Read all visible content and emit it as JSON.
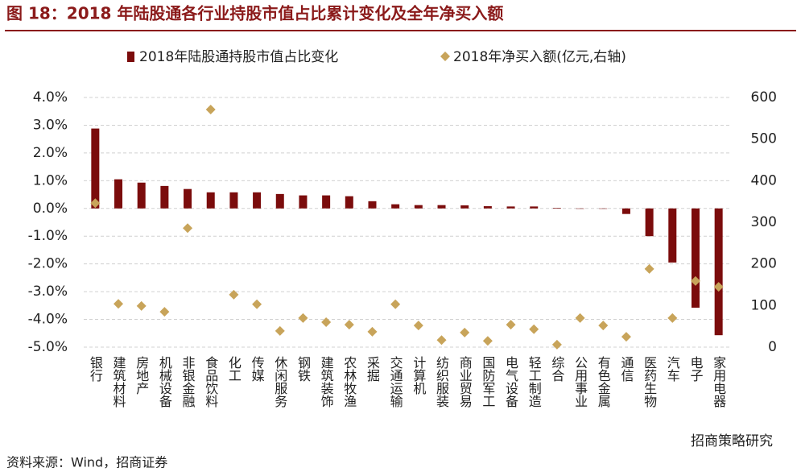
{
  "chart_data": {
    "type": "bar_scatter",
    "title": "图 18：2018 年陆股通各行业持股市值占比累计变化及全年净买入额",
    "source": "资料来源：Wind，招商证券",
    "watermark": "招商策略研究",
    "categories": [
      "银行",
      "建筑材料",
      "房地产",
      "机械设备",
      "非银金融",
      "食品饮料",
      "化工",
      "传媒",
      "休闲服务",
      "钢铁",
      "建筑装饰",
      "农林牧渔",
      "采掘",
      "交通运输",
      "计算机",
      "纺织服装",
      "商业贸易",
      "国防军工",
      "电气设备",
      "轻工制造",
      "综合",
      "公用事业",
      "有色金属",
      "通信",
      "医药生物",
      "汽车",
      "电子",
      "家用电器"
    ],
    "series": [
      {
        "name": "2018年陆股通持股市值占比变化",
        "color": "#7b0c0c",
        "type": "bar",
        "values": [
          2.88,
          1.05,
          0.93,
          0.81,
          0.7,
          0.58,
          0.58,
          0.58,
          0.52,
          0.47,
          0.47,
          0.44,
          0.26,
          0.15,
          0.12,
          0.12,
          0.11,
          0.08,
          0.07,
          0.07,
          0.02,
          0.0,
          0.0,
          -0.2,
          -1.0,
          -1.95,
          -3.58,
          -4.57
        ]
      },
      {
        "name": "2018年净买入额(亿元,右轴)",
        "color": "#c8a45a",
        "type": "scatter",
        "axis": "y2",
        "values": [
          346,
          104,
          99,
          85,
          286,
          571,
          126,
          103,
          39,
          70,
          60,
          54,
          37,
          103,
          52,
          17,
          35,
          15,
          54,
          43,
          6,
          70,
          52,
          25,
          188,
          70,
          159,
          145
        ]
      }
    ],
    "ylim": [
      -5,
      4
    ],
    "yticks": [
      {
        "value": 4,
        "label": "4.0%"
      },
      {
        "value": 3,
        "label": "3.0%"
      },
      {
        "value": 2,
        "label": "2.0%"
      },
      {
        "value": 1,
        "label": "1.0%"
      },
      {
        "value": 0,
        "label": "0.0%"
      },
      {
        "value": -1,
        "label": "-1.0%"
      },
      {
        "value": -2,
        "label": "-2.0%"
      },
      {
        "value": -3,
        "label": "-3.0%"
      },
      {
        "value": -4,
        "label": "-4.0%"
      },
      {
        "value": -5,
        "label": "-5.0%"
      }
    ],
    "y2lim": [
      0,
      600
    ],
    "y2ticks": [
      0,
      100,
      200,
      300,
      400,
      500,
      600
    ],
    "grid": true
  }
}
